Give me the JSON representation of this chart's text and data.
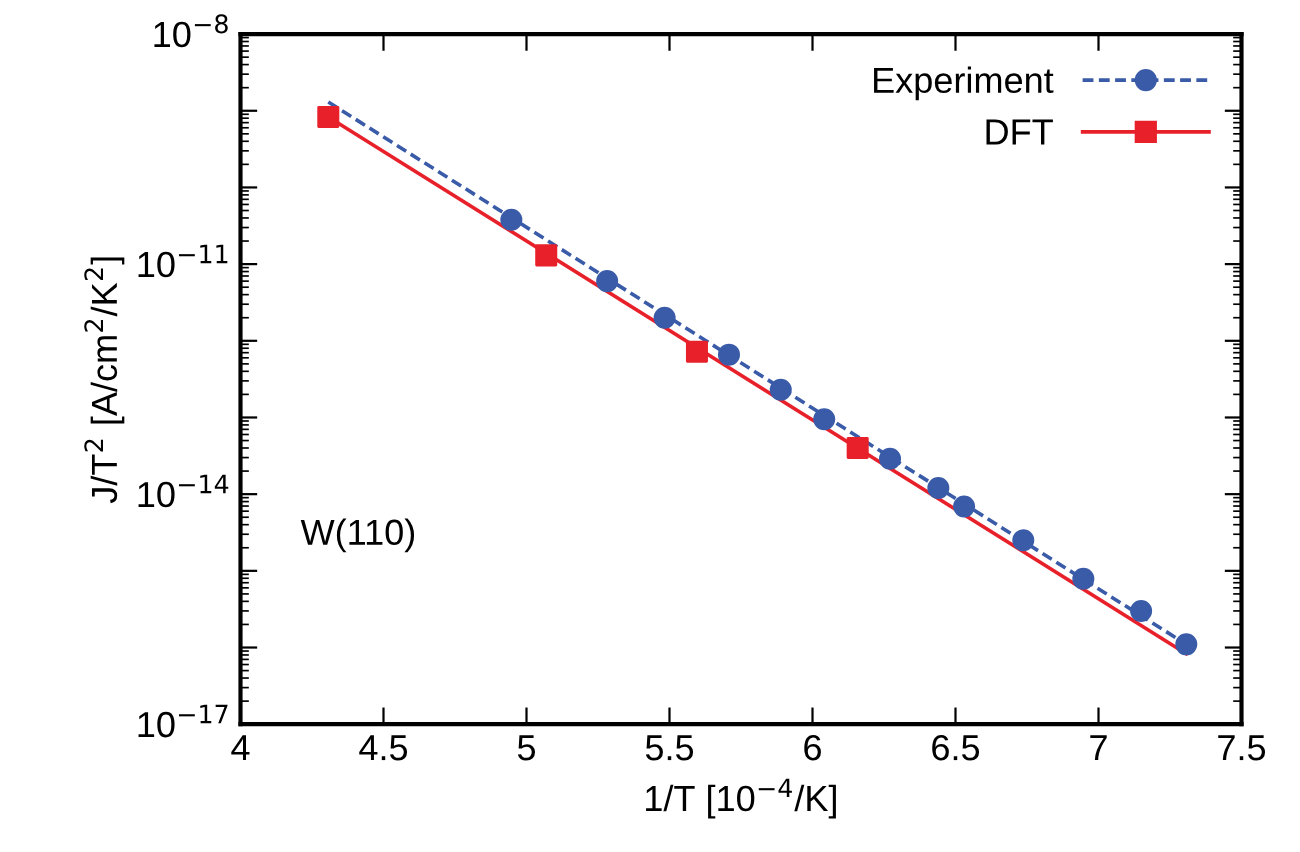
{
  "chart_data": {
    "type": "scatter",
    "xlabel": "1/T [10$^{−4}$/K]",
    "ylabel": "J/T$^{2}$ [A/cm$^{2}$/K$^{2}$]",
    "annotations": [
      "W(110)"
    ],
    "log": "y",
    "xlim": [
      4,
      7.5
    ],
    "xticks": [
      4,
      4.5,
      5,
      5.5,
      6,
      6.5,
      7,
      7.5
    ],
    "ylim": [
      1e-17,
      1e-08
    ],
    "yticks": [
      {
        "value": 1e-08,
        "label": "10$^{−8}$"
      },
      {
        "value": 1e-09,
        "label": null
      },
      {
        "value": 1e-10,
        "label": null
      },
      {
        "value": 1e-11,
        "label": "10$^{−11}$"
      },
      {
        "value": 1e-12,
        "label": null
      },
      {
        "value": 1e-13,
        "label": null
      },
      {
        "value": 1e-14,
        "label": "10$^{−14}$"
      },
      {
        "value": 1e-15,
        "label": null
      },
      {
        "value": 1e-16,
        "label": null
      },
      {
        "value": 1e-17,
        "label": "10$^{−17}$"
      }
    ],
    "grid": false,
    "legend": "top right",
    "series": [
      {
        "name": "Experiment",
        "marker": "circle",
        "line_style": "dashed",
        "color": "#3a5ba8",
        "x": [
          4.947,
          5.282,
          5.483,
          5.708,
          5.889,
          6.041,
          6.271,
          6.44,
          6.53,
          6.737,
          6.947,
          7.149,
          7.307
        ],
        "values": [
          3.8e-11,
          6e-12,
          2e-12,
          6.6e-13,
          2.3e-13,
          9.5e-14,
          2.9e-14,
          1.2e-14,
          6.9e-15,
          2.5e-15,
          7.9e-16,
          3e-16,
          1.1e-16
        ]
      },
      {
        "name": "DFT",
        "marker": "square",
        "line_style": "solid",
        "color": "#e8202a",
        "x": [
          4.307,
          5.069,
          5.596,
          6.158
        ],
        "values": [
          8.3e-10,
          1.3e-11,
          7.2e-13,
          4e-14
        ]
      },
      {
        "type": "line",
        "marker": "none",
        "line_style": "dashed",
        "color": "#3a5ba8",
        "x": [
          4.307,
          7.307
        ],
        "values": [
          1.3e-09,
          1.1e-16
        ]
      },
      {
        "type": "line",
        "marker": "none",
        "line_style": "solid",
        "color": "#e8202a",
        "x": [
          4.307,
          7.307
        ],
        "values": [
          8.3e-10,
          8.3e-17
        ]
      }
    ]
  }
}
